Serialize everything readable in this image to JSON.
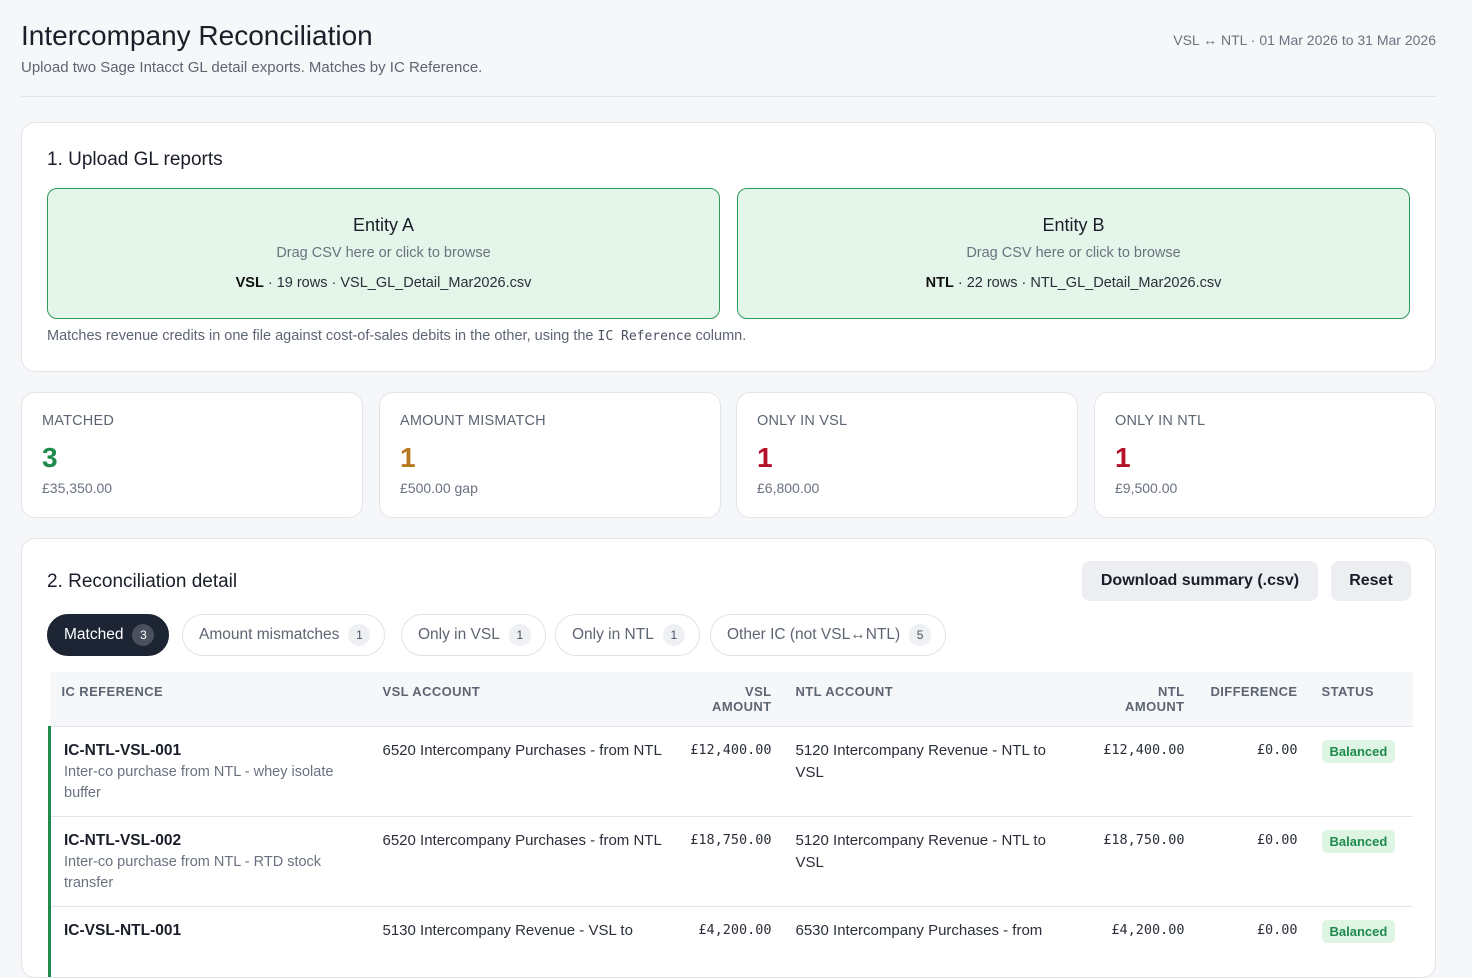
{
  "header": {
    "title": "Intercompany Reconciliation",
    "subtitle": "Upload two Sage Intacct GL detail exports. Matches by IC Reference.",
    "period": "VSL ↔ NTL · 01 Mar 2026 to 31 Mar 2026"
  },
  "upload": {
    "heading": "1. Upload GL reports",
    "entity_a": {
      "title": "Entity A",
      "hint": "Drag CSV here or click to browse",
      "code": "VSL",
      "info": " · 19 rows · VSL_GL_Detail_Mar2026.csv"
    },
    "entity_b": {
      "title": "Entity B",
      "hint": "Drag CSV here or click to browse",
      "code": "NTL",
      "info": " · 22 rows · NTL_GL_Detail_Mar2026.csv"
    },
    "note_pre": "Matches revenue credits in one file against cost-of-sales debits in the other, using the",
    "note_code": "IC Reference",
    "note_post": "column."
  },
  "stats": [
    {
      "label": "MATCHED",
      "value": "3",
      "amount": "£35,350.00",
      "color": "#1f8a4c"
    },
    {
      "label": "AMOUNT MISMATCH",
      "value": "1",
      "amount": "£500.00 gap",
      "color": "#b7791f"
    },
    {
      "label": "ONLY IN VSL",
      "value": "1",
      "amount": "£6,800.00",
      "color": "#b3122a"
    },
    {
      "label": "ONLY IN NTL",
      "value": "1",
      "amount": "£9,500.00",
      "color": "#b3122a"
    }
  ],
  "detail": {
    "heading": "2. Reconciliation detail",
    "download_label": "Download summary (.csv)",
    "reset_label": "Reset",
    "tabs": [
      {
        "label": "Matched",
        "count": "3"
      },
      {
        "label": "Amount mismatches",
        "count": "1"
      },
      {
        "label": "Only in VSL",
        "count": "1"
      },
      {
        "label": "Only in NTL",
        "count": "1"
      },
      {
        "label": "Other IC (not VSL↔NTL)",
        "count": "5"
      }
    ],
    "columns": {
      "ref": "IC REFERENCE",
      "vsl_account": "VSL ACCOUNT",
      "vsl_amount": "VSL AMOUNT",
      "ntl_account": "NTL ACCOUNT",
      "ntl_amount": "NTL AMOUNT",
      "difference": "DIFFERENCE",
      "status": "STATUS"
    },
    "rows": [
      {
        "ref": "IC-NTL-VSL-001",
        "desc": "Inter-co purchase from NTL - whey isolate buffer",
        "vsl_account": "6520 Intercompany Purchases - from NTL",
        "vsl_amount": "£12,400.00",
        "ntl_account": "5120 Intercompany Revenue - NTL to VSL",
        "ntl_amount": "£12,400.00",
        "difference": "£0.00",
        "status": "Balanced"
      },
      {
        "ref": "IC-NTL-VSL-002",
        "desc": "Inter-co purchase from NTL - RTD stock transfer",
        "vsl_account": "6520 Intercompany Purchases - from NTL",
        "vsl_amount": "£18,750.00",
        "ntl_account": "5120 Intercompany Revenue - NTL to VSL",
        "ntl_amount": "£18,750.00",
        "difference": "£0.00",
        "status": "Balanced"
      },
      {
        "ref": "IC-VSL-NTL-001",
        "desc": "",
        "vsl_account": "5130 Intercompany Revenue - VSL to",
        "vsl_amount": "£4,200.00",
        "ntl_account": "6530 Intercompany Purchases - from",
        "ntl_amount": "£4,200.00",
        "difference": "£0.00",
        "status": "Balanced"
      }
    ]
  }
}
